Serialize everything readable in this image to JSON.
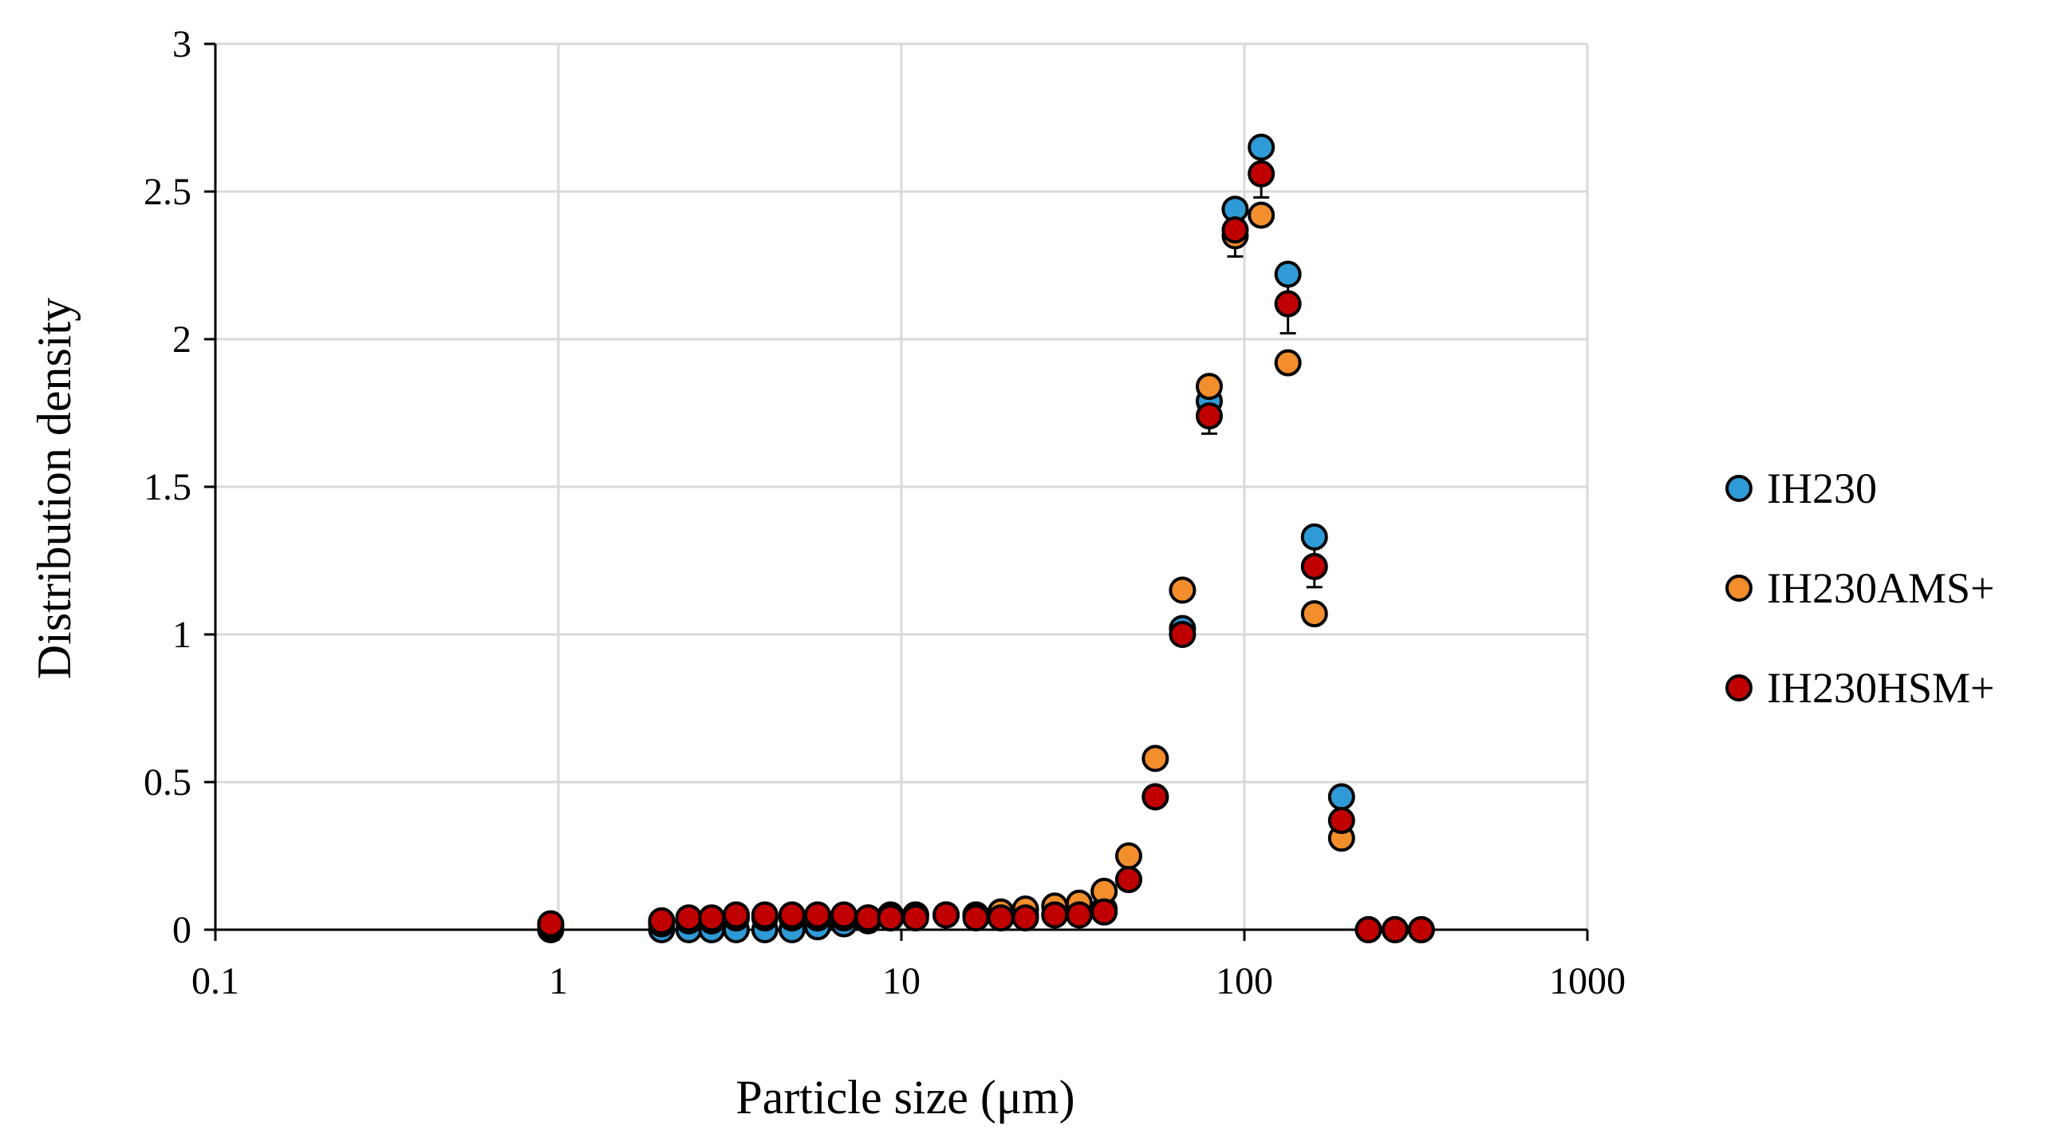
{
  "chart_data": {
    "type": "scatter",
    "title": "",
    "xlabel": "Particle size (μm)",
    "ylabel": "Distribution density",
    "xscale": "log",
    "xlim": [
      0.1,
      1000
    ],
    "ylim": [
      0,
      3
    ],
    "xticks": [
      0.1,
      1,
      10,
      100,
      1000
    ],
    "xtick_labels": [
      "0.1",
      "1",
      "10",
      "100",
      "1000"
    ],
    "yticks": [
      0,
      0.5,
      1,
      1.5,
      2,
      2.5,
      3
    ],
    "ytick_labels": [
      "0",
      "0.5",
      "1",
      "1.5",
      "2",
      "2.5",
      "3"
    ],
    "grid": true,
    "legend_position": "right",
    "series": [
      {
        "name": "IH230",
        "color": "#2e9bd6",
        "x": [
          0.95,
          2.0,
          2.4,
          2.8,
          3.3,
          4.0,
          4.8,
          5.7,
          6.8,
          8.0,
          9.3,
          11.0,
          13.5,
          16.5,
          19.5,
          23.0,
          28.0,
          33.0,
          39.0,
          46.0,
          55.0,
          66.0,
          79.0,
          94.0,
          112.0,
          134.0,
          160.0,
          192.0,
          230.0,
          275.0,
          328.0
        ],
        "y": [
          0.0,
          0.0,
          0.0,
          0.0,
          0.0,
          0.0,
          0.0,
          0.01,
          0.02,
          0.03,
          0.04,
          0.05,
          0.05,
          0.05,
          0.05,
          0.05,
          0.05,
          0.06,
          0.07,
          0.17,
          0.45,
          1.02,
          1.79,
          2.44,
          2.65,
          2.22,
          1.33,
          0.45,
          0.0,
          0.0,
          0.0
        ]
      },
      {
        "name": "IH230AMS+",
        "color": "#f28e2b",
        "x": [
          0.95,
          2.0,
          2.4,
          2.8,
          3.3,
          4.0,
          4.8,
          5.7,
          6.8,
          8.0,
          9.3,
          11.0,
          13.5,
          16.5,
          19.5,
          23.0,
          28.0,
          33.0,
          39.0,
          46.0,
          55.0,
          66.0,
          79.0,
          94.0,
          112.0,
          134.0,
          160.0,
          192.0,
          230.0,
          275.0,
          328.0
        ],
        "y": [
          0.01,
          0.02,
          0.03,
          0.03,
          0.04,
          0.04,
          0.04,
          0.04,
          0.04,
          0.04,
          0.05,
          0.05,
          0.05,
          0.05,
          0.06,
          0.07,
          0.08,
          0.09,
          0.13,
          0.25,
          0.58,
          1.15,
          1.84,
          2.35,
          2.42,
          1.92,
          1.07,
          0.31,
          0.0,
          0.0,
          0.0
        ]
      },
      {
        "name": "IH230HSM+",
        "color": "#c00000",
        "x": [
          0.95,
          2.0,
          2.4,
          2.8,
          3.3,
          4.0,
          4.8,
          5.7,
          6.8,
          8.0,
          9.3,
          11.0,
          13.5,
          16.5,
          19.5,
          23.0,
          28.0,
          33.0,
          39.0,
          46.0,
          55.0,
          66.0,
          79.0,
          94.0,
          112.0,
          134.0,
          160.0,
          192.0,
          230.0,
          275.0,
          328.0
        ],
        "y": [
          0.02,
          0.03,
          0.04,
          0.04,
          0.05,
          0.05,
          0.05,
          0.05,
          0.05,
          0.04,
          0.04,
          0.04,
          0.05,
          0.04,
          0.04,
          0.04,
          0.05,
          0.05,
          0.06,
          0.17,
          0.45,
          1.0,
          1.74,
          2.37,
          2.56,
          2.12,
          1.23,
          0.37,
          0.0,
          0.0,
          0.0
        ],
        "error": [
          0,
          0,
          0,
          0,
          0,
          0,
          0,
          0,
          0,
          0,
          0,
          0,
          0,
          0,
          0,
          0,
          0,
          0,
          0,
          0,
          0,
          0,
          0.06,
          0.09,
          0.08,
          0.1,
          0.07,
          0,
          0,
          0,
          0
        ]
      }
    ]
  }
}
